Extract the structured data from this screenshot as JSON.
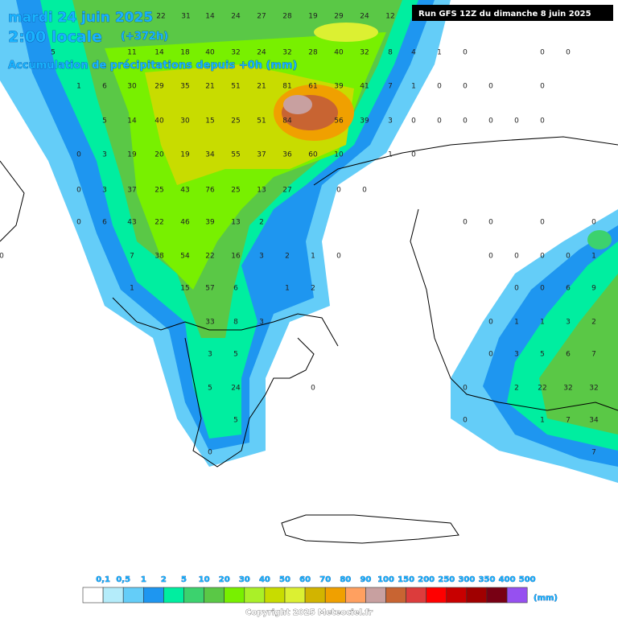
{
  "header": {
    "date": "mardi 24 juin 2025",
    "time": "2:00 locale",
    "lead": "(+372h)",
    "subtitle": "Accumulation de précipitations depuis +0h (mm)",
    "run": "Run GFS 12Z du dimanche 8 juin 2025"
  },
  "grid_values": [
    22,
    31,
    14,
    24,
    27,
    28,
    19,
    29,
    24,
    12,
    5,
    11,
    14,
    18,
    40,
    32,
    24,
    32,
    28,
    40,
    32,
    8,
    4,
    1,
    0,
    0,
    0,
    1,
    6,
    30,
    29,
    35,
    21,
    51,
    21,
    81,
    61,
    39,
    41,
    7,
    1,
    0,
    0,
    0,
    0,
    5,
    14,
    40,
    30,
    15,
    25,
    51,
    84,
    56,
    39,
    3,
    0,
    0,
    0,
    0,
    0,
    0,
    0,
    3,
    19,
    20,
    19,
    34,
    55,
    37,
    36,
    60,
    10,
    1,
    0,
    0,
    3,
    37,
    25,
    43,
    76,
    25,
    13,
    27,
    0,
    0,
    0,
    6,
    43,
    22,
    46,
    39,
    13,
    2,
    0,
    0,
    0,
    0,
    0,
    7,
    38,
    54,
    22,
    16,
    3,
    2,
    1,
    0,
    0,
    0,
    0,
    0,
    1,
    1,
    15,
    57,
    6,
    1,
    2,
    0,
    0,
    6,
    9,
    33,
    8,
    3,
    0,
    1,
    1,
    3,
    2,
    3,
    5,
    0,
    3,
    5,
    6,
    7,
    5,
    24,
    0,
    0,
    2,
    22,
    32,
    32,
    5,
    0,
    1,
    7,
    34,
    0,
    7
  ],
  "legend": {
    "labels": [
      "0,1",
      "0,5",
      "1",
      "2",
      "5",
      "10",
      "20",
      "30",
      "40",
      "50",
      "60",
      "70",
      "80",
      "90",
      "100",
      "150",
      "200",
      "250",
      "300",
      "350",
      "400",
      "500"
    ],
    "unit": "(mm)",
    "colors": [
      "#ffffff",
      "#b4ecfa",
      "#64cdf8",
      "#1e96f0",
      "#00eea0",
      "#3cd26e",
      "#5ac846",
      "#78f000",
      "#aaf028",
      "#c8dc00",
      "#dcf032",
      "#d2b400",
      "#f0a000",
      "#ffa060",
      "#c8a0a0",
      "#c86432",
      "#dc3c3c",
      "#ff0000",
      "#c80000",
      "#a00000",
      "#780014",
      "#9650f0"
    ]
  },
  "footer": {
    "copyright": "Copyright 2025 Meteociel.fr"
  }
}
